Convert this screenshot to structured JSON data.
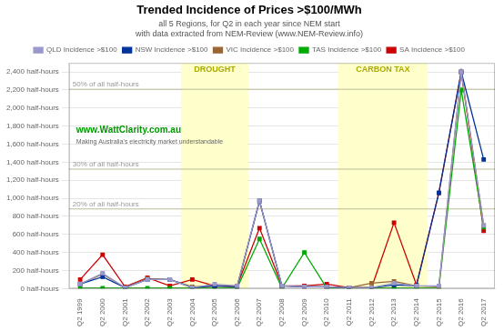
{
  "chart_data": {
    "type": "line",
    "title": "Trended Incidence of Prices >$100/MWh",
    "subtitle": "all 5 Regions, for Q2 in each year since NEM start",
    "subtitle2": "with data extracted from NEM-Review (www.NEM-Review.info)",
    "categories": [
      "Q2 1999",
      "Q2 2000",
      "Q2 2001",
      "Q2 2002",
      "Q2 2003",
      "Q2 2004",
      "Q2 2005",
      "Q2 2006",
      "Q2 2007",
      "Q2 2008",
      "Q2 2009",
      "Q2 2010",
      "Q2 2011",
      "Q2 2012",
      "Q2 2013",
      "Q2 2014",
      "Q2 2015",
      "Q2 2016",
      "Q2 2017"
    ],
    "series": [
      {
        "name": "QLD Incidence >$100",
        "color": "#9999cc",
        "marker": "square",
        "values": [
          50,
          170,
          10,
          100,
          100,
          10,
          50,
          30,
          975,
          30,
          20,
          20,
          10,
          10,
          60,
          30,
          30,
          2400,
          700
        ]
      },
      {
        "name": "NSW Incidence >$100",
        "color": "#003399",
        "marker": "square",
        "values": [
          50,
          130,
          10,
          100,
          100,
          10,
          30,
          20,
          975,
          30,
          20,
          20,
          10,
          10,
          40,
          30,
          1060,
          2400,
          1430
        ]
      },
      {
        "name": "VIC Incidence >$100",
        "color": "#996633",
        "marker": "square",
        "values": [
          50,
          160,
          10,
          110,
          100,
          20,
          30,
          20,
          965,
          30,
          20,
          20,
          10,
          60,
          80,
          30,
          20,
          2400,
          700
        ]
      },
      {
        "name": "TAS Incidence >$100",
        "color": "#00aa00",
        "marker": "square",
        "values": [
          5,
          5,
          5,
          5,
          5,
          5,
          5,
          5,
          550,
          5,
          400,
          5,
          5,
          5,
          5,
          5,
          5,
          2200,
          680
        ]
      },
      {
        "name": "SA Incidence >$100",
        "color": "#cc0000",
        "marker": "square",
        "values": [
          100,
          375,
          20,
          120,
          30,
          100,
          30,
          30,
          670,
          30,
          30,
          50,
          10,
          10,
          730,
          40,
          1060,
          2400,
          640
        ]
      }
    ],
    "ylim": [
      0,
      2500
    ],
    "yticks": [
      {
        "value": 0,
        "label": "0 half-hours"
      },
      {
        "value": 200,
        "label": "200 half-hours"
      },
      {
        "value": 400,
        "label": "400 half-hours"
      },
      {
        "value": 600,
        "label": "600 half-hours"
      },
      {
        "value": 800,
        "label": "800 half-hours"
      },
      {
        "value": 1000,
        "label": "1,000 half-hours"
      },
      {
        "value": 1200,
        "label": "1,200 half-hours"
      },
      {
        "value": 1400,
        "label": "1,400 half-hours"
      },
      {
        "value": 1600,
        "label": "1,600 half-hours"
      },
      {
        "value": 1800,
        "label": "1,800 half-hours"
      },
      {
        "value": 2000,
        "label": "2,000 half-hours"
      },
      {
        "value": 2200,
        "label": "2,200 half-hours"
      },
      {
        "value": 2400,
        "label": "2,400 half-hours"
      }
    ],
    "grid": true,
    "legend": "top",
    "reference_lines": [
      {
        "value": 2208,
        "label": "50% of all half-hours"
      },
      {
        "value": 1323,
        "label": "30% of all half-hours"
      },
      {
        "value": 882,
        "label": "20% of all half-hours"
      }
    ],
    "bands": [
      {
        "label": "DROUGHT",
        "start": "Q2 2004",
        "end": "Q2 2006",
        "color": "#ffffcc"
      },
      {
        "label": "CARBON TAX",
        "start": "Q2 2011",
        "end": "Q2 2014",
        "color": "#ffffcc"
      }
    ],
    "annotations": [
      "www.WattClarity.com.au",
      "Making Australia's electricity market understandable"
    ]
  }
}
